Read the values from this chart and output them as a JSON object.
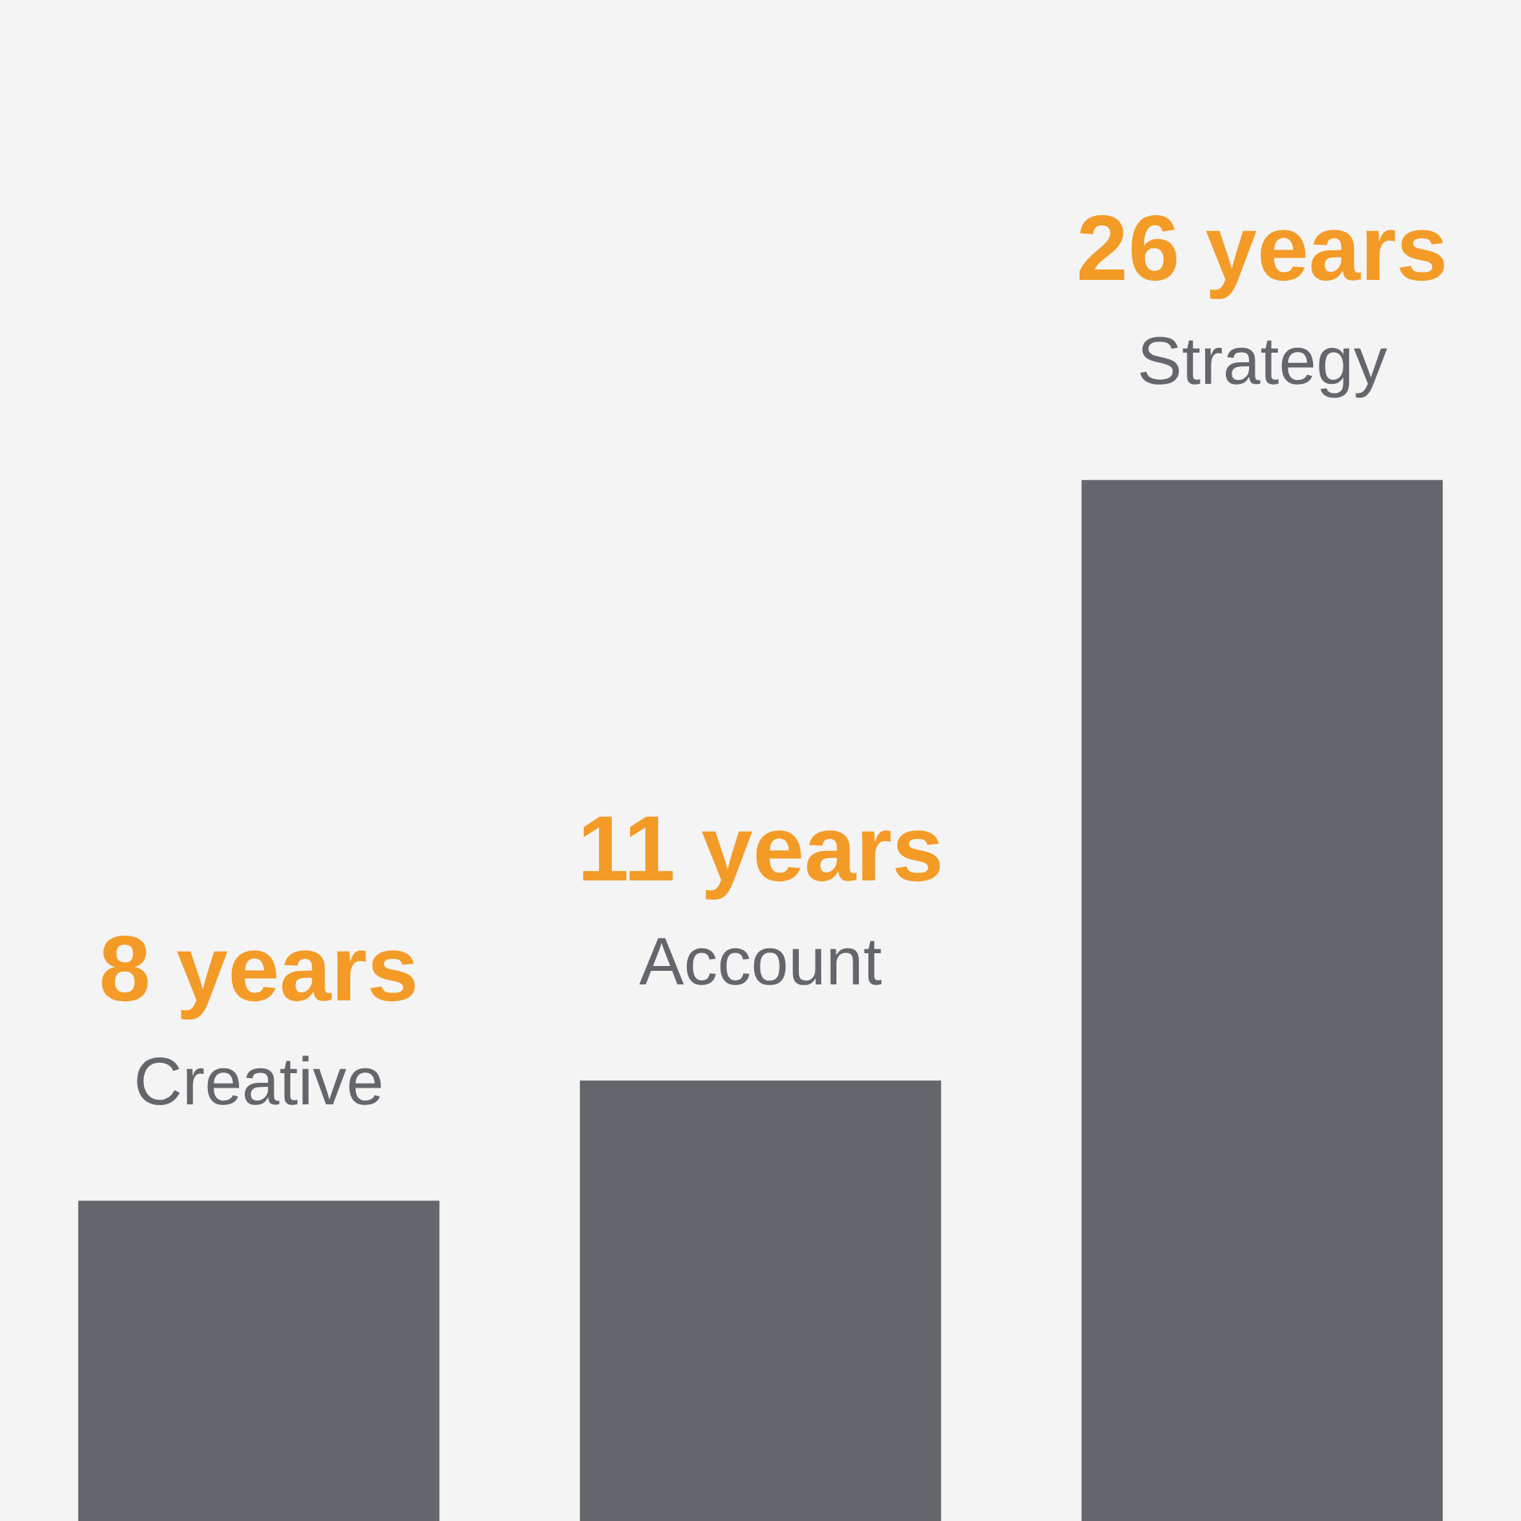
{
  "chart_data": {
    "type": "bar",
    "categories": [
      "Creative",
      "Account",
      "Strategy"
    ],
    "values": [
      8,
      11,
      26
    ],
    "color": "#63666a",
    "value_labels": [
      "8 years",
      "11 years",
      "26 years"
    ]
  }
}
